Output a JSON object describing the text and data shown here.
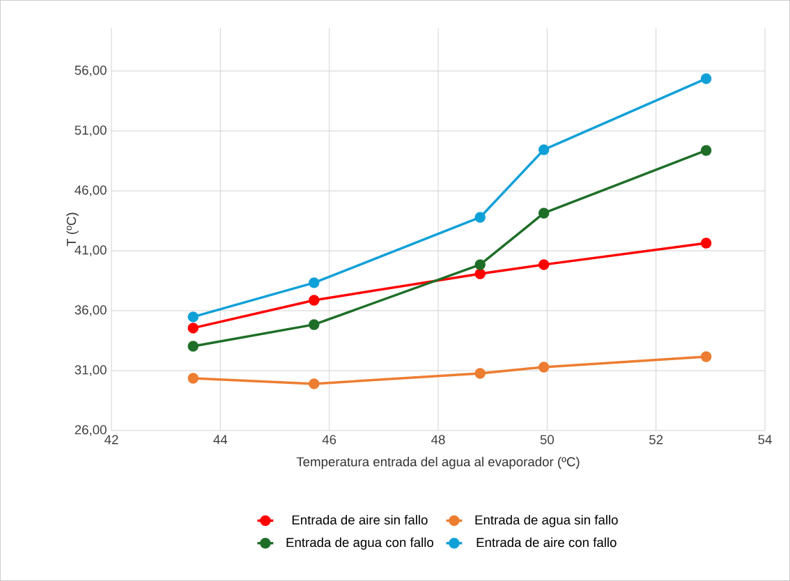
{
  "chart_data": {
    "type": "line",
    "xlabel": "Temperatura entrada del agua al evaporador (ºC)",
    "ylabel": "T (ºC)",
    "xlim": [
      42,
      54
    ],
    "xticks": [
      42,
      44,
      46,
      48,
      50,
      52,
      54
    ],
    "ylim": [
      26,
      59.6
    ],
    "yticks": [
      {
        "value": 26,
        "label": "26,00"
      },
      {
        "value": 31,
        "label": "31,00"
      },
      {
        "value": 36,
        "label": "36,00"
      },
      {
        "value": 41,
        "label": "41,00"
      },
      {
        "value": 46,
        "label": "46,00"
      },
      {
        "value": 51,
        "label": "51,00"
      },
      {
        "value": 56,
        "label": "56,00"
      }
    ],
    "grid": true,
    "legend": "bottom",
    "marker": "circle",
    "line_style": "solid",
    "x": [
      43.5,
      45.72,
      48.77,
      49.94,
      52.92
    ],
    "series": [
      {
        "name": "Entrada de aire sin fallo",
        "color": "#ff0000",
        "values": [
          34.55,
          36.87,
          39.08,
          39.84,
          41.64
        ]
      },
      {
        "name": "Entrada de agua sin fallo",
        "color": "#ed7d31",
        "values": [
          30.36,
          29.9,
          30.77,
          31.29,
          32.16
        ]
      },
      {
        "name": "Entrada de agua con fallo",
        "color": "#1e6e28",
        "values": [
          33.03,
          34.84,
          39.84,
          44.14,
          49.37
        ]
      },
      {
        "name": "Entrada de aire con fallo",
        "color": "#10a0d8",
        "values": [
          35.48,
          38.33,
          43.79,
          49.43,
          55.36
        ]
      }
    ]
  }
}
